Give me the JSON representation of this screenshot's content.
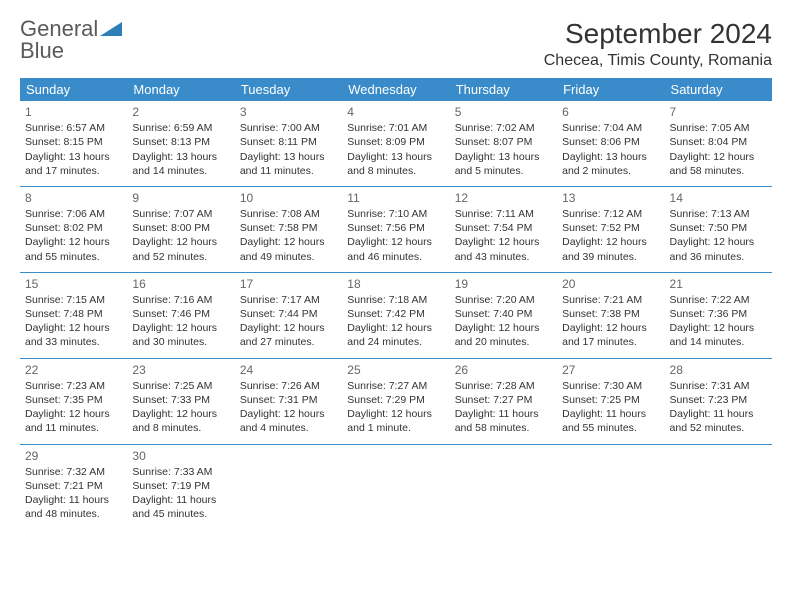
{
  "logo": {
    "text1": "General",
    "text2": "Blue"
  },
  "title": "September 2024",
  "location": "Checea, Timis County, Romania",
  "colors": {
    "header_bg": "#3a8bc9",
    "header_text": "#ffffff",
    "logo_gray": "#5a5a5a",
    "logo_blue": "#2c7fb8",
    "text": "#333333",
    "rule": "#3a8bc9",
    "background": "#ffffff"
  },
  "typography": {
    "month_title_fontsize": 28,
    "location_fontsize": 16,
    "weekday_fontsize": 13,
    "cell_fontsize": 10.5,
    "daynum_fontsize": 12
  },
  "weekdays": [
    "Sunday",
    "Monday",
    "Tuesday",
    "Wednesday",
    "Thursday",
    "Friday",
    "Saturday"
  ],
  "weeks": [
    [
      {
        "n": "1",
        "sr": "Sunrise: 6:57 AM",
        "ss": "Sunset: 8:15 PM",
        "dl1": "Daylight: 13 hours",
        "dl2": "and 17 minutes."
      },
      {
        "n": "2",
        "sr": "Sunrise: 6:59 AM",
        "ss": "Sunset: 8:13 PM",
        "dl1": "Daylight: 13 hours",
        "dl2": "and 14 minutes."
      },
      {
        "n": "3",
        "sr": "Sunrise: 7:00 AM",
        "ss": "Sunset: 8:11 PM",
        "dl1": "Daylight: 13 hours",
        "dl2": "and 11 minutes."
      },
      {
        "n": "4",
        "sr": "Sunrise: 7:01 AM",
        "ss": "Sunset: 8:09 PM",
        "dl1": "Daylight: 13 hours",
        "dl2": "and 8 minutes."
      },
      {
        "n": "5",
        "sr": "Sunrise: 7:02 AM",
        "ss": "Sunset: 8:07 PM",
        "dl1": "Daylight: 13 hours",
        "dl2": "and 5 minutes."
      },
      {
        "n": "6",
        "sr": "Sunrise: 7:04 AM",
        "ss": "Sunset: 8:06 PM",
        "dl1": "Daylight: 13 hours",
        "dl2": "and 2 minutes."
      },
      {
        "n": "7",
        "sr": "Sunrise: 7:05 AM",
        "ss": "Sunset: 8:04 PM",
        "dl1": "Daylight: 12 hours",
        "dl2": "and 58 minutes."
      }
    ],
    [
      {
        "n": "8",
        "sr": "Sunrise: 7:06 AM",
        "ss": "Sunset: 8:02 PM",
        "dl1": "Daylight: 12 hours",
        "dl2": "and 55 minutes."
      },
      {
        "n": "9",
        "sr": "Sunrise: 7:07 AM",
        "ss": "Sunset: 8:00 PM",
        "dl1": "Daylight: 12 hours",
        "dl2": "and 52 minutes."
      },
      {
        "n": "10",
        "sr": "Sunrise: 7:08 AM",
        "ss": "Sunset: 7:58 PM",
        "dl1": "Daylight: 12 hours",
        "dl2": "and 49 minutes."
      },
      {
        "n": "11",
        "sr": "Sunrise: 7:10 AM",
        "ss": "Sunset: 7:56 PM",
        "dl1": "Daylight: 12 hours",
        "dl2": "and 46 minutes."
      },
      {
        "n": "12",
        "sr": "Sunrise: 7:11 AM",
        "ss": "Sunset: 7:54 PM",
        "dl1": "Daylight: 12 hours",
        "dl2": "and 43 minutes."
      },
      {
        "n": "13",
        "sr": "Sunrise: 7:12 AM",
        "ss": "Sunset: 7:52 PM",
        "dl1": "Daylight: 12 hours",
        "dl2": "and 39 minutes."
      },
      {
        "n": "14",
        "sr": "Sunrise: 7:13 AM",
        "ss": "Sunset: 7:50 PM",
        "dl1": "Daylight: 12 hours",
        "dl2": "and 36 minutes."
      }
    ],
    [
      {
        "n": "15",
        "sr": "Sunrise: 7:15 AM",
        "ss": "Sunset: 7:48 PM",
        "dl1": "Daylight: 12 hours",
        "dl2": "and 33 minutes."
      },
      {
        "n": "16",
        "sr": "Sunrise: 7:16 AM",
        "ss": "Sunset: 7:46 PM",
        "dl1": "Daylight: 12 hours",
        "dl2": "and 30 minutes."
      },
      {
        "n": "17",
        "sr": "Sunrise: 7:17 AM",
        "ss": "Sunset: 7:44 PM",
        "dl1": "Daylight: 12 hours",
        "dl2": "and 27 minutes."
      },
      {
        "n": "18",
        "sr": "Sunrise: 7:18 AM",
        "ss": "Sunset: 7:42 PM",
        "dl1": "Daylight: 12 hours",
        "dl2": "and 24 minutes."
      },
      {
        "n": "19",
        "sr": "Sunrise: 7:20 AM",
        "ss": "Sunset: 7:40 PM",
        "dl1": "Daylight: 12 hours",
        "dl2": "and 20 minutes."
      },
      {
        "n": "20",
        "sr": "Sunrise: 7:21 AM",
        "ss": "Sunset: 7:38 PM",
        "dl1": "Daylight: 12 hours",
        "dl2": "and 17 minutes."
      },
      {
        "n": "21",
        "sr": "Sunrise: 7:22 AM",
        "ss": "Sunset: 7:36 PM",
        "dl1": "Daylight: 12 hours",
        "dl2": "and 14 minutes."
      }
    ],
    [
      {
        "n": "22",
        "sr": "Sunrise: 7:23 AM",
        "ss": "Sunset: 7:35 PM",
        "dl1": "Daylight: 12 hours",
        "dl2": "and 11 minutes."
      },
      {
        "n": "23",
        "sr": "Sunrise: 7:25 AM",
        "ss": "Sunset: 7:33 PM",
        "dl1": "Daylight: 12 hours",
        "dl2": "and 8 minutes."
      },
      {
        "n": "24",
        "sr": "Sunrise: 7:26 AM",
        "ss": "Sunset: 7:31 PM",
        "dl1": "Daylight: 12 hours",
        "dl2": "and 4 minutes."
      },
      {
        "n": "25",
        "sr": "Sunrise: 7:27 AM",
        "ss": "Sunset: 7:29 PM",
        "dl1": "Daylight: 12 hours",
        "dl2": "and 1 minute."
      },
      {
        "n": "26",
        "sr": "Sunrise: 7:28 AM",
        "ss": "Sunset: 7:27 PM",
        "dl1": "Daylight: 11 hours",
        "dl2": "and 58 minutes."
      },
      {
        "n": "27",
        "sr": "Sunrise: 7:30 AM",
        "ss": "Sunset: 7:25 PM",
        "dl1": "Daylight: 11 hours",
        "dl2": "and 55 minutes."
      },
      {
        "n": "28",
        "sr": "Sunrise: 7:31 AM",
        "ss": "Sunset: 7:23 PM",
        "dl1": "Daylight: 11 hours",
        "dl2": "and 52 minutes."
      }
    ],
    [
      {
        "n": "29",
        "sr": "Sunrise: 7:32 AM",
        "ss": "Sunset: 7:21 PM",
        "dl1": "Daylight: 11 hours",
        "dl2": "and 48 minutes."
      },
      {
        "n": "30",
        "sr": "Sunrise: 7:33 AM",
        "ss": "Sunset: 7:19 PM",
        "dl1": "Daylight: 11 hours",
        "dl2": "and 45 minutes."
      },
      null,
      null,
      null,
      null,
      null
    ]
  ]
}
